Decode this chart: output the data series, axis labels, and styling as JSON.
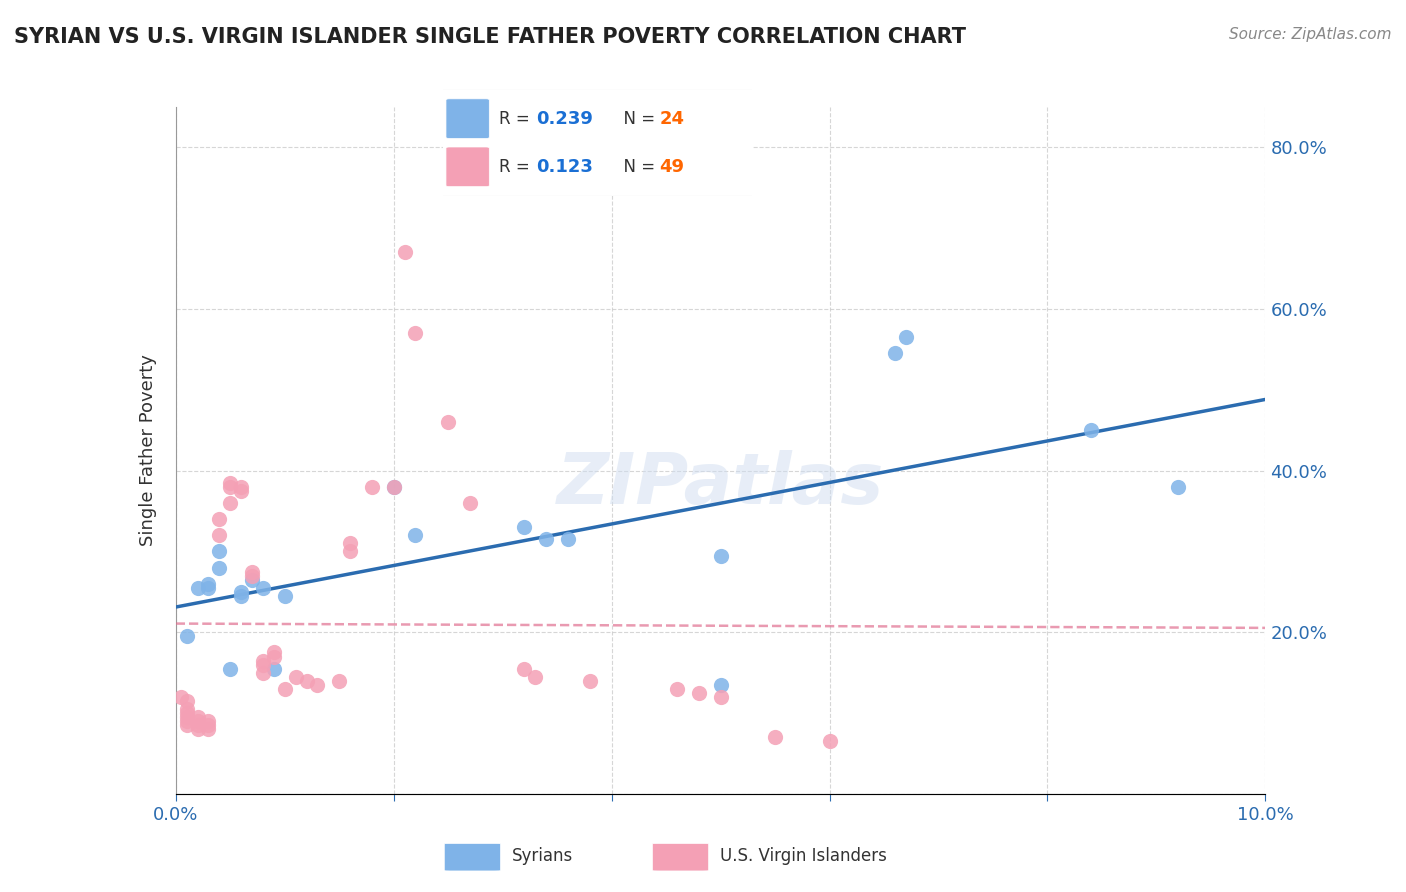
{
  "title": "SYRIAN VS U.S. VIRGIN ISLANDER SINGLE FATHER POVERTY CORRELATION CHART",
  "source": "Source: ZipAtlas.com",
  "xlabel": "",
  "ylabel": "Single Father Poverty",
  "xlim": [
    0.0,
    0.1
  ],
  "ylim": [
    0.0,
    0.85
  ],
  "xticks": [
    0.0,
    0.02,
    0.04,
    0.06,
    0.08,
    0.1
  ],
  "xtick_labels": [
    "0.0%",
    "",
    "",
    "",
    "",
    "10.0%"
  ],
  "yticks": [
    0.0,
    0.2,
    0.4,
    0.6,
    0.8
  ],
  "ytick_labels": [
    "",
    "20.0%",
    "40.0%",
    "60.0%",
    "80.0%"
  ],
  "syrians_R": 0.239,
  "syrians_N": 24,
  "vi_R": 0.123,
  "vi_N": 49,
  "syrians_color": "#7fb3e8",
  "vi_color": "#f4a0b5",
  "syrians_line_color": "#2b6cb0",
  "vi_line_color": "#e07090",
  "trend_line_color": "#c8c8d8",
  "watermark": "ZIPatlas",
  "watermark_color": "#d0ddf0",
  "legend_R_color": "#1a6fd4",
  "legend_N_color": "#ff6600",
  "syrians_x": [
    0.001,
    0.001,
    0.002,
    0.002,
    0.003,
    0.004,
    0.004,
    0.005,
    0.005,
    0.006,
    0.008,
    0.008,
    0.009,
    0.02,
    0.022,
    0.031,
    0.034,
    0.036,
    0.05,
    0.052,
    0.066,
    0.067,
    0.084,
    0.092
  ],
  "syrians_y": [
    0.195,
    0.245,
    0.255,
    0.22,
    0.26,
    0.28,
    0.3,
    0.155,
    0.245,
    0.245,
    0.265,
    0.255,
    0.155,
    0.38,
    0.32,
    0.33,
    0.315,
    0.315,
    0.295,
    0.135,
    0.545,
    0.565,
    0.45,
    0.38
  ],
  "vi_x": [
    0.0005,
    0.001,
    0.001,
    0.001,
    0.001,
    0.001,
    0.001,
    0.001,
    0.002,
    0.002,
    0.002,
    0.002,
    0.003,
    0.003,
    0.003,
    0.004,
    0.004,
    0.005,
    0.005,
    0.005,
    0.006,
    0.006,
    0.007,
    0.007,
    0.008,
    0.008,
    0.008,
    0.009,
    0.009,
    0.01,
    0.011,
    0.012,
    0.013,
    0.015,
    0.016,
    0.016,
    0.018,
    0.02,
    0.021,
    0.022,
    0.025,
    0.027,
    0.032,
    0.033,
    0.038,
    0.046,
    0.048,
    0.05,
    0.055
  ],
  "vi_y": [
    0.12,
    0.085,
    0.09,
    0.095,
    0.1,
    0.105,
    0.11,
    0.115,
    0.08,
    0.085,
    0.09,
    0.095,
    0.08,
    0.085,
    0.09,
    0.32,
    0.34,
    0.36,
    0.38,
    0.385,
    0.375,
    0.38,
    0.27,
    0.275,
    0.15,
    0.16,
    0.165,
    0.17,
    0.175,
    0.13,
    0.145,
    0.14,
    0.135,
    0.14,
    0.3,
    0.31,
    0.38,
    0.38,
    0.67,
    0.57,
    0.46,
    0.36,
    0.155,
    0.145,
    0.14,
    0.13,
    0.125,
    0.12,
    0.07
  ]
}
